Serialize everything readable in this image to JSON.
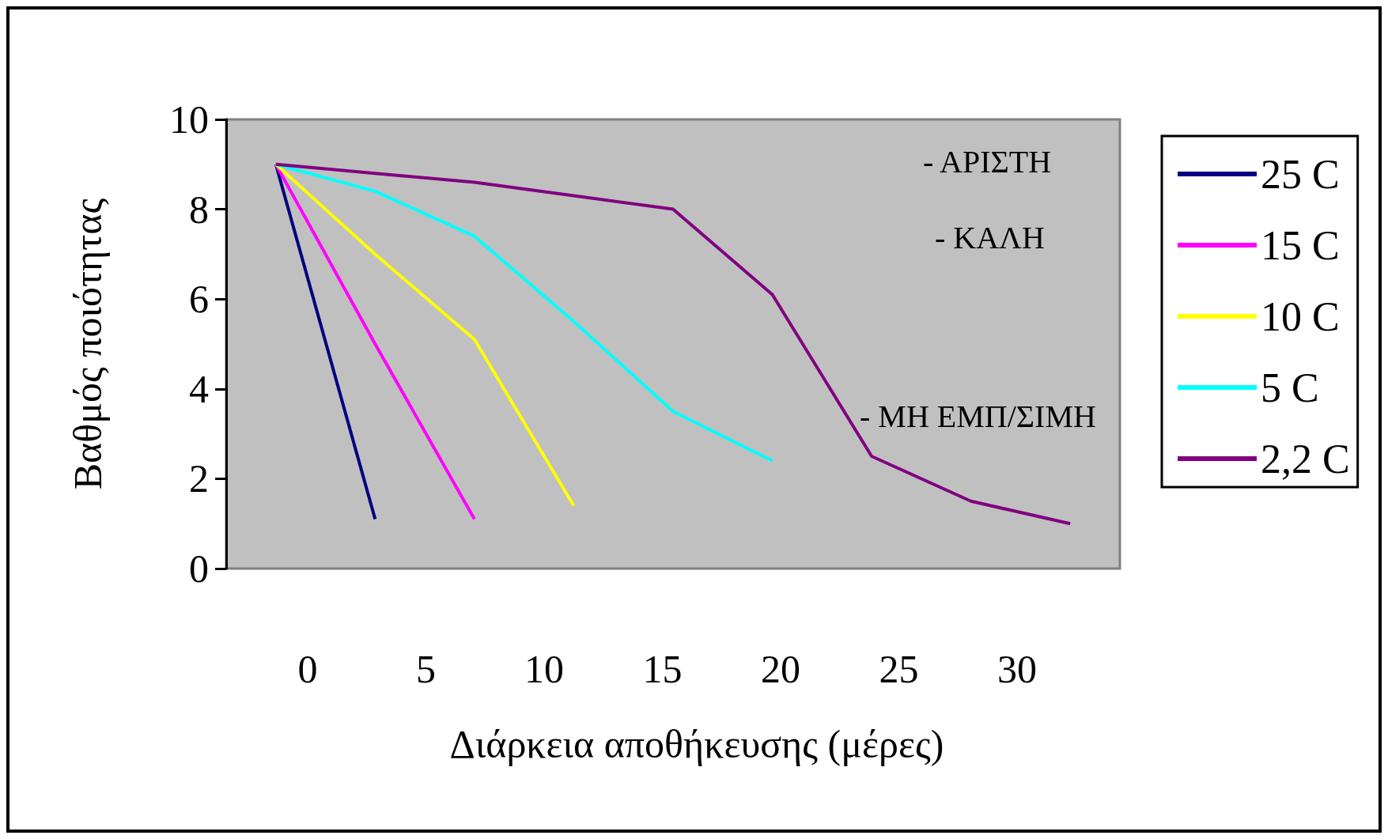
{
  "chart_data": {
    "type": "line",
    "xlabel": "Διάρκεια αποθήκευσης (μέρες)",
    "ylabel": "Βαθμός ποιότητας",
    "categories": [
      null,
      null,
      null,
      null,
      null,
      null,
      null,
      null,
      null
    ],
    "series": [
      {
        "name": "25 C",
        "color": "#000080",
        "values": [
          9,
          1.1,
          null,
          null,
          null,
          null,
          null,
          null,
          null
        ]
      },
      {
        "name": "15 C",
        "color": "#ff00ff",
        "values": [
          9,
          5.0,
          1.1,
          null,
          null,
          null,
          null,
          null,
          null
        ]
      },
      {
        "name": "10 C",
        "color": "#ffff00",
        "values": [
          9,
          7.0,
          5.1,
          1.4,
          null,
          null,
          null,
          null,
          null
        ]
      },
      {
        "name": "5 C",
        "color": "#00ffff",
        "values": [
          9,
          8.4,
          7.4,
          5.5,
          3.5,
          2.4,
          null,
          null,
          null
        ]
      },
      {
        "name": "2,2 C",
        "color": "#800080",
        "values": [
          9,
          8.8,
          8.6,
          8.3,
          8.0,
          6.1,
          2.5,
          1.5,
          1.0
        ]
      }
    ],
    "ylim": [
      0,
      10
    ],
    "yticks": [
      0,
      2,
      4,
      6,
      8,
      10
    ],
    "grid": false,
    "legend": "right",
    "marker": "none",
    "annotations": [
      "- ΑΡΙΣΤΗ",
      "- ΚΑΛΗ",
      "- ΜΗ ΕΜΠ/ΣΙΜΗ",
      "0",
      "5",
      "10",
      "15",
      "20",
      "25",
      "30"
    ]
  }
}
